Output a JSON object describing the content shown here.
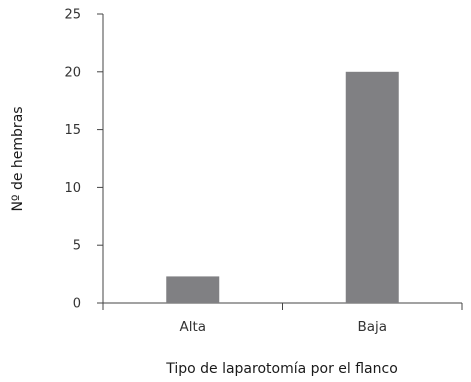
{
  "chart_data": {
    "type": "bar",
    "categories": [
      "Alta",
      "Baja"
    ],
    "values": [
      2.3,
      20
    ],
    "xlabel": "Tipo de laparotomía por el flanco",
    "ylabel": "Nº de hembras",
    "ylim": [
      0,
      25
    ],
    "yticks": [
      0,
      5,
      10,
      15,
      20,
      25
    ],
    "grid": false,
    "colors": {
      "bar": "#808083",
      "axis": "#444444",
      "text": "#333333"
    }
  }
}
